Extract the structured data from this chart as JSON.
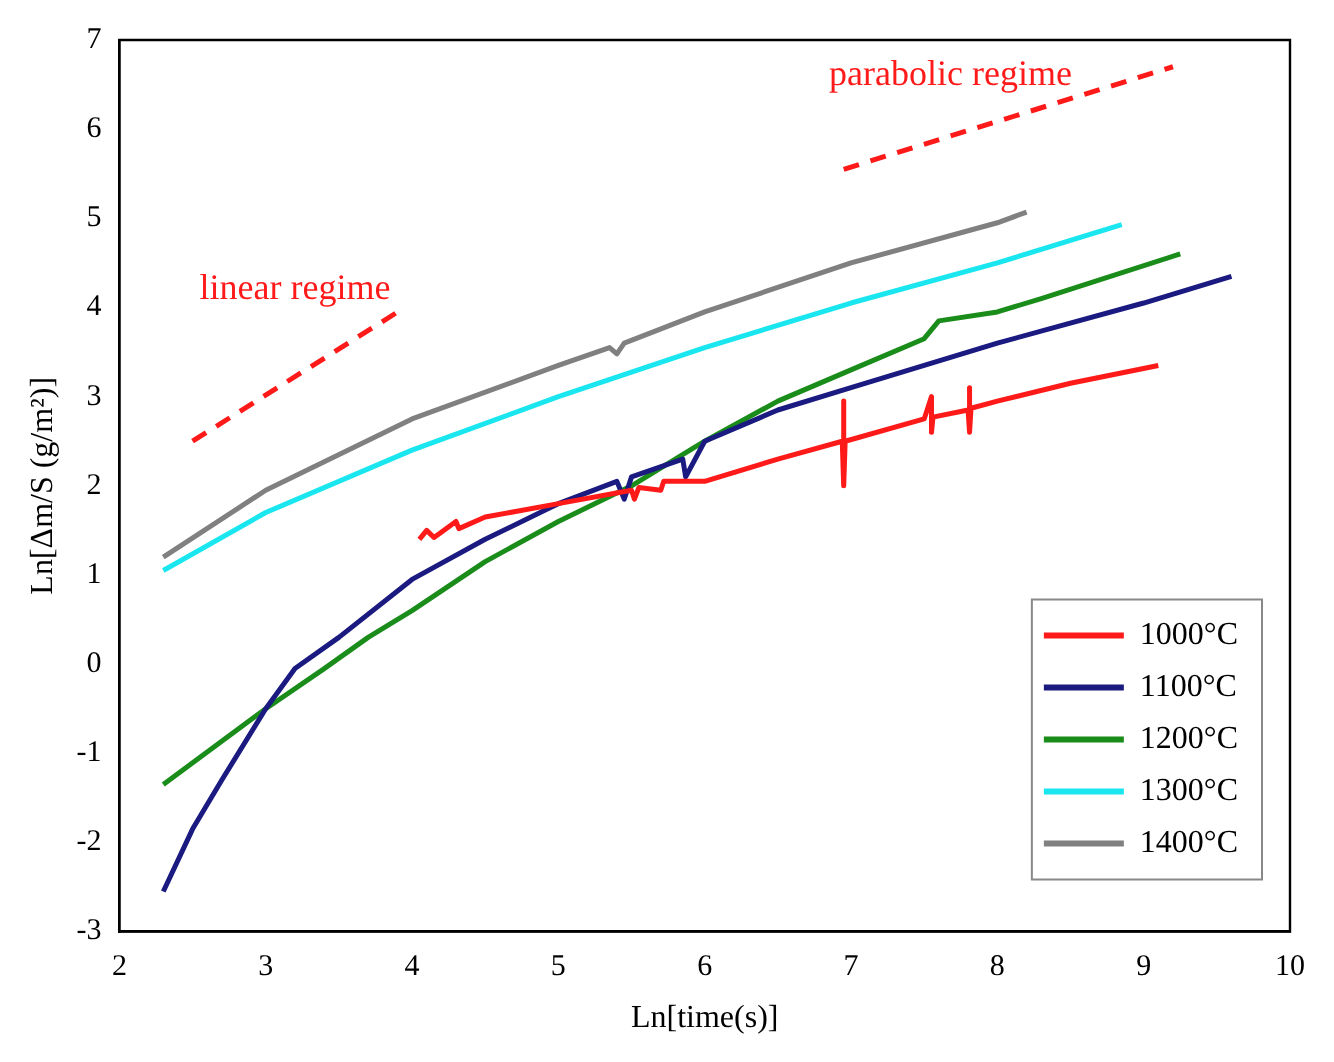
{
  "chart_data": {
    "type": "line",
    "xlabel": "Ln[time(s)]",
    "ylabel": "Ln[Δm/S (g/m²)]",
    "xlim": [
      2,
      10
    ],
    "ylim": [
      -3,
      7
    ],
    "xticks": [
      2,
      3,
      4,
      5,
      6,
      7,
      8,
      9,
      10
    ],
    "yticks": [
      -3,
      -2,
      -1,
      0,
      1,
      2,
      3,
      4,
      5,
      6,
      7
    ],
    "grid": false,
    "legend": "bottom right",
    "marker": "none",
    "annotations": [
      "linear regime",
      "parabolic regime"
    ],
    "series": [
      {
        "name": "1000°C",
        "color": "#ff1a1a",
        "x": [
          4.05,
          4.1,
          4.15,
          4.2,
          4.3,
          4.32,
          4.5,
          5,
          5.5,
          5.52,
          5.55,
          5.7,
          5.72,
          6,
          6.5,
          6.94,
          6.95,
          6.95,
          6.96,
          7.5,
          7.55,
          7.55,
          7.56,
          7.8,
          7.81,
          7.81,
          7.82,
          8,
          8.5,
          9.1
        ],
        "values": [
          1.4,
          1.5,
          1.42,
          1.48,
          1.6,
          1.52,
          1.65,
          1.8,
          1.95,
          1.85,
          1.98,
          1.95,
          2.05,
          2.05,
          2.3,
          2.5,
          2.95,
          2.0,
          2.5,
          2.75,
          3.0,
          2.6,
          2.77,
          2.85,
          3.1,
          2.6,
          2.87,
          2.95,
          3.15,
          3.35
        ]
      },
      {
        "name": "1100°C",
        "color": "#1a1a80",
        "x": [
          2.3,
          2.5,
          2.7,
          3,
          3.2,
          3.5,
          4,
          4.5,
          5,
          5.4,
          5.45,
          5.5,
          5.85,
          5.87,
          6,
          6.5,
          7,
          8,
          9,
          9.6
        ],
        "values": [
          -2.55,
          -1.85,
          -1.3,
          -0.5,
          -0.05,
          0.3,
          0.95,
          1.4,
          1.8,
          2.05,
          1.85,
          2.1,
          2.3,
          2.1,
          2.5,
          2.85,
          3.1,
          3.6,
          4.05,
          4.35
        ]
      },
      {
        "name": "1200°C",
        "color": "#1a8c1a",
        "x": [
          2.3,
          3,
          3.4,
          3.7,
          4,
          4.5,
          5,
          5.5,
          6,
          6.5,
          7,
          7.5,
          7.6,
          8,
          8.3,
          9.25
        ],
        "values": [
          -1.35,
          -0.5,
          -0.05,
          0.3,
          0.6,
          1.15,
          1.6,
          2.0,
          2.5,
          2.95,
          3.3,
          3.65,
          3.85,
          3.95,
          4.1,
          4.6
        ]
      },
      {
        "name": "1300°C",
        "color": "#1ae6f0",
        "x": [
          2.3,
          3,
          4,
          5,
          6,
          7,
          8,
          8.85
        ],
        "values": [
          1.05,
          1.7,
          2.4,
          3.0,
          3.55,
          4.05,
          4.5,
          4.93
        ]
      },
      {
        "name": "1400°C",
        "color": "#808080",
        "x": [
          2.3,
          3,
          4,
          5,
          5.35,
          5.4,
          5.45,
          6,
          7,
          8,
          8.2
        ],
        "values": [
          1.2,
          1.95,
          2.75,
          3.35,
          3.55,
          3.48,
          3.6,
          3.95,
          4.5,
          4.95,
          5.07
        ]
      },
      {
        "color": "#ff1a1a",
        "line_style": "dashed",
        "x": [
          2.5,
          3.95
        ],
        "values": [
          2.5,
          4.0
        ]
      },
      {
        "color": "#ff1a1a",
        "line_style": "dashed",
        "x": [
          6.95,
          9.2
        ],
        "values": [
          5.55,
          6.7
        ]
      }
    ]
  }
}
